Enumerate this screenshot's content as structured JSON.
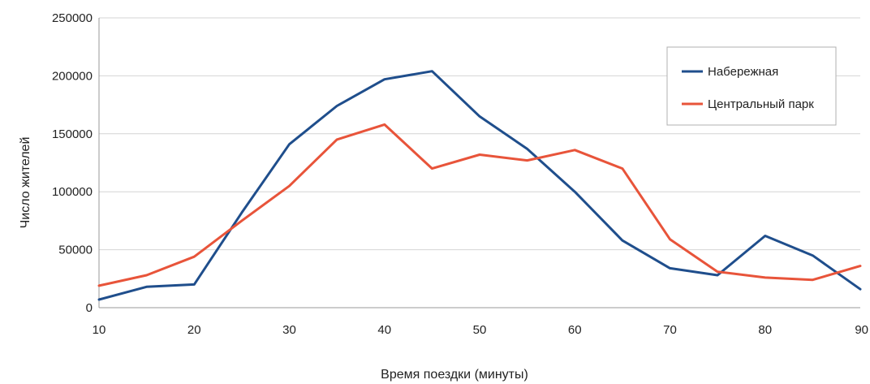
{
  "chart_data": {
    "type": "line",
    "title": "",
    "xlabel": "Время поездки (минуты)",
    "ylabel": "Число жителей",
    "xlim": [
      10,
      90
    ],
    "ylim": [
      0,
      250000
    ],
    "x_ticks": [
      "10",
      "20",
      "30",
      "40",
      "50",
      "60",
      "70",
      "80",
      "90"
    ],
    "y_ticks": [
      "0",
      "50000",
      "100000",
      "150000",
      "200000",
      "250000"
    ],
    "grid": true,
    "legend_position": "top-right",
    "x": [
      10,
      15,
      20,
      25,
      30,
      35,
      40,
      45,
      50,
      55,
      60,
      65,
      70,
      75,
      80,
      85,
      90
    ],
    "series": [
      {
        "name": "Набережная",
        "color": "#1f4e8c",
        "values": [
          7000,
          18000,
          20000,
          82000,
          141000,
          174000,
          197000,
          204000,
          165000,
          137000,
          100000,
          58000,
          34000,
          28000,
          62000,
          45000,
          16000
        ]
      },
      {
        "name": "Центральный парк",
        "color": "#e8543a",
        "values": [
          19000,
          28000,
          44000,
          75000,
          105000,
          145000,
          158000,
          120000,
          132000,
          127000,
          136000,
          120000,
          59000,
          31000,
          26000,
          24000,
          36000
        ]
      }
    ]
  }
}
